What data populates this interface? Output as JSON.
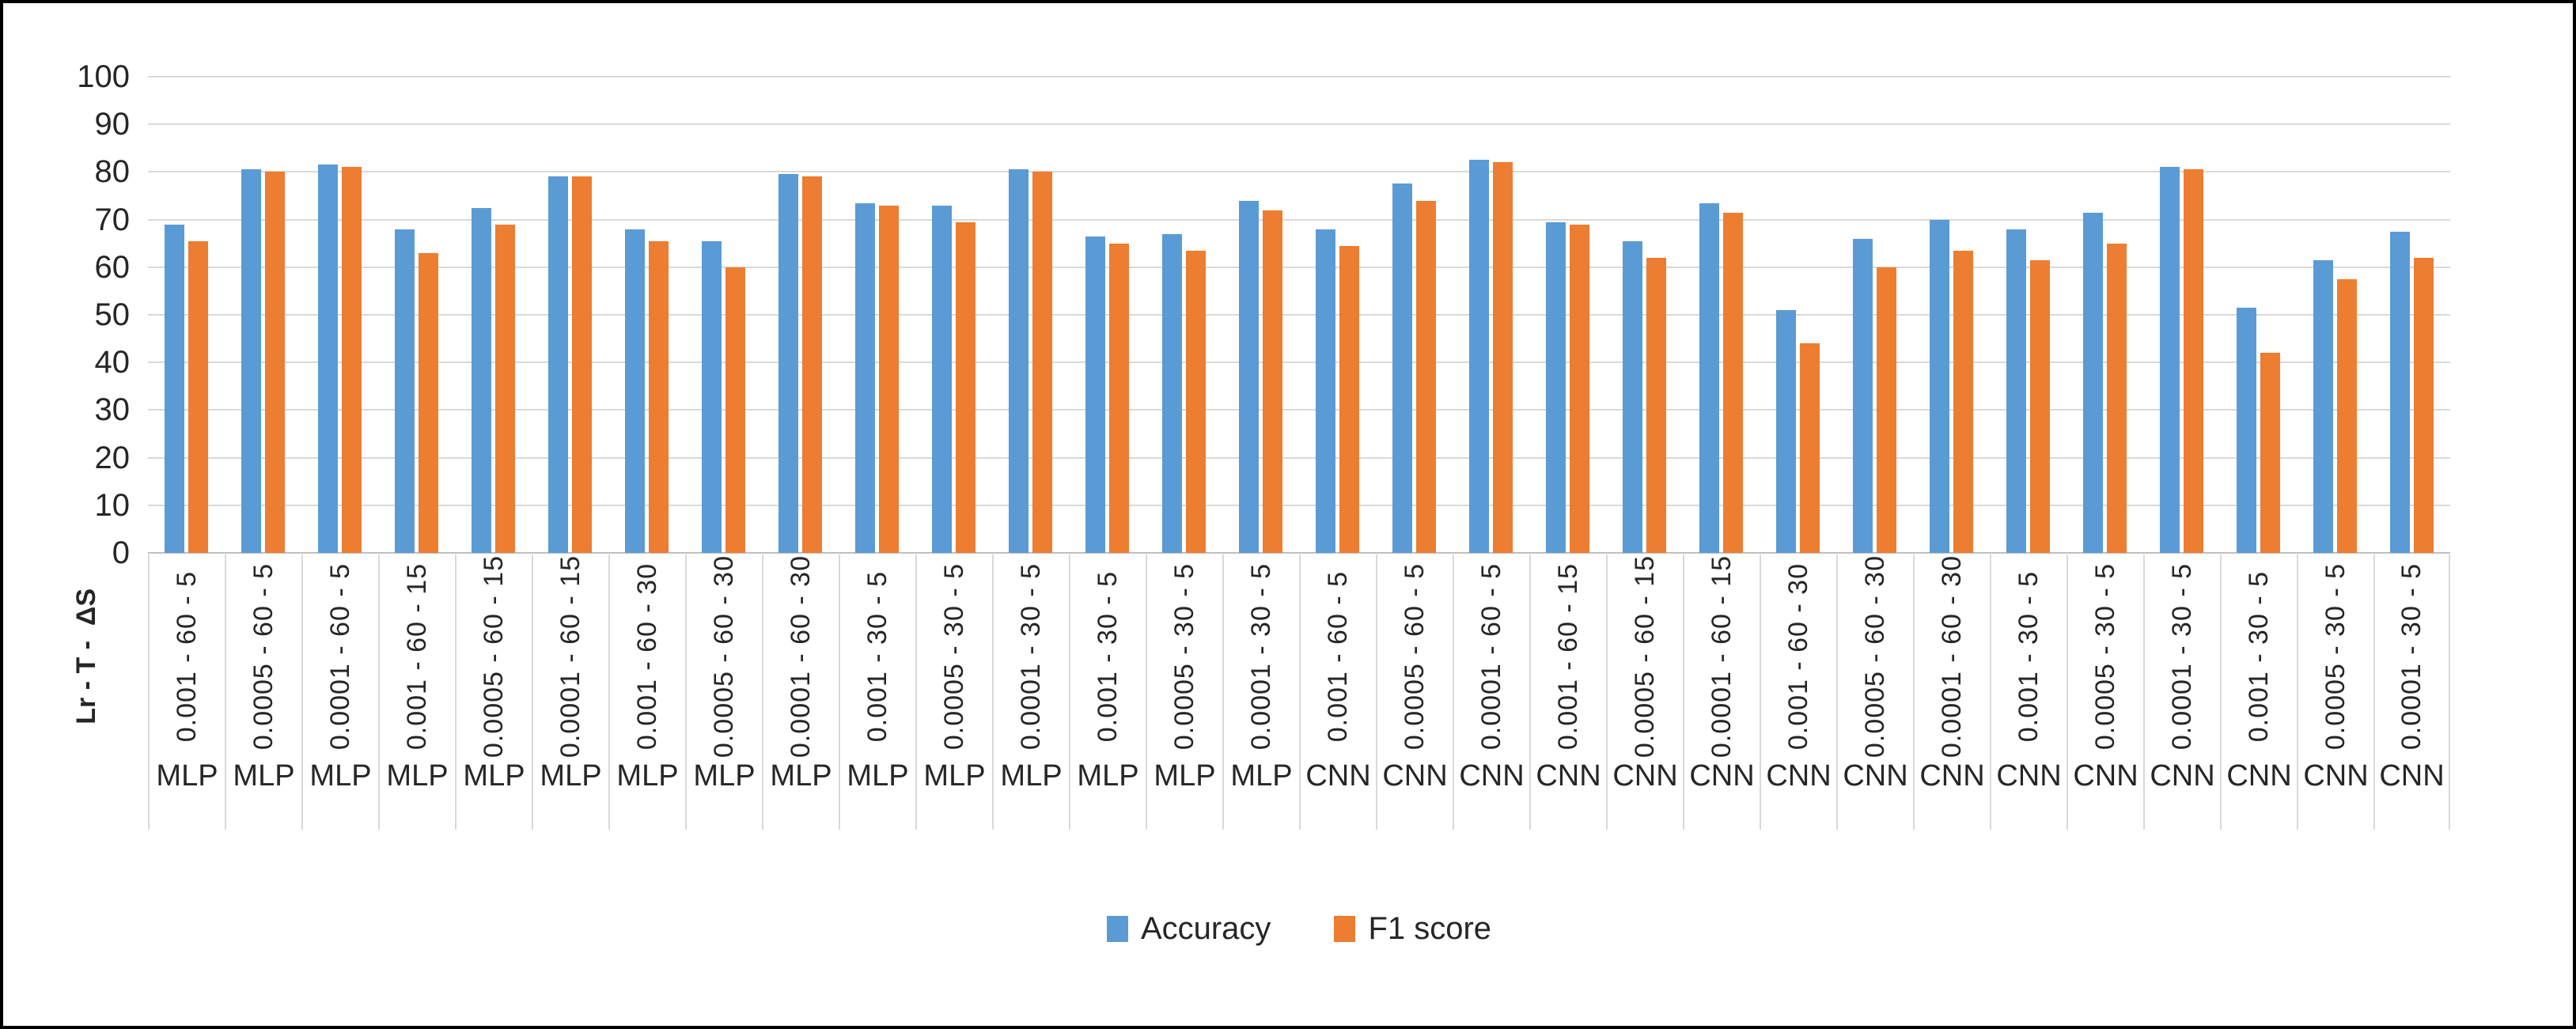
{
  "chart_data": {
    "type": "bar",
    "axis_title_rotated": "Lr - T -  ΔS",
    "ylim": [
      0,
      100
    ],
    "yticks": [
      0,
      10,
      20,
      30,
      40,
      50,
      60,
      70,
      80,
      90,
      100
    ],
    "grid": true,
    "legend_position": "bottom",
    "colors": {
      "accuracy": "#5b9bd5",
      "f1": "#ed7d31",
      "gridline": "#d9d9d9",
      "axis_line": "#bfbfbf",
      "text": "#262626",
      "border": "#000000"
    },
    "categories": [
      "0.001 - 60 - 5",
      "0.0005 - 60 - 5",
      "0.0001 - 60 - 5",
      "0.001 - 60 - 15",
      "0.0005 - 60 - 15",
      "0.0001 - 60 - 15",
      "0.001 - 60 - 30",
      "0.0005 - 60 - 30",
      "0.0001 - 60 - 30",
      "0.001 - 30 - 5",
      "0.0005 - 30 - 5",
      "0.0001 - 30 - 5",
      "0.001 - 30 - 5",
      "0.0005 - 30 - 5",
      "0.0001 - 30 - 5",
      "0.001 - 60 - 5",
      "0.0005 - 60 - 5",
      "0.0001 - 60 - 5",
      "0.001 - 60 - 15",
      "0.0005 - 60 - 15",
      "0.0001 - 60 - 15",
      "0.001 - 60 - 30",
      "0.0005 - 60 - 30",
      "0.0001 - 60 - 30",
      "0.001 - 30 - 5",
      "0.0005 - 30 - 5",
      "0.0001 - 30 - 5",
      "0.001 - 30 - 5",
      "0.0005 - 30 - 5",
      "0.0001 - 30 - 5"
    ],
    "networks": [
      "MLP",
      "MLP",
      "MLP",
      "MLP",
      "MLP",
      "MLP",
      "MLP",
      "MLP",
      "MLP",
      "MLP",
      "MLP",
      "MLP",
      "MLP",
      "MLP",
      "MLP",
      "CNN",
      "CNN",
      "CNN",
      "CNN",
      "CNN",
      "CNN",
      "CNN",
      "CNN",
      "CNN",
      "CNN",
      "CNN",
      "CNN",
      "CNN",
      "CNN",
      "CNN"
    ],
    "series": [
      {
        "name": "Accuracy",
        "values": [
          69,
          80.5,
          81.5,
          68,
          72.5,
          79,
          68,
          65.5,
          79.5,
          73.5,
          73,
          80.5,
          66.5,
          67,
          74,
          68,
          77.5,
          82.5,
          69.5,
          65.5,
          73.5,
          51,
          66,
          70,
          68,
          71.5,
          81,
          51.5,
          61.5,
          67.5
        ]
      },
      {
        "name": "F1 score",
        "values": [
          65.5,
          80,
          81,
          63,
          69,
          79,
          65.5,
          60,
          79,
          73,
          69.5,
          80,
          65,
          63.5,
          72,
          64.5,
          74,
          82,
          69,
          62,
          71.5,
          44,
          60,
          63.5,
          61.5,
          65,
          80.5,
          42,
          57.5,
          62
        ]
      }
    ]
  }
}
